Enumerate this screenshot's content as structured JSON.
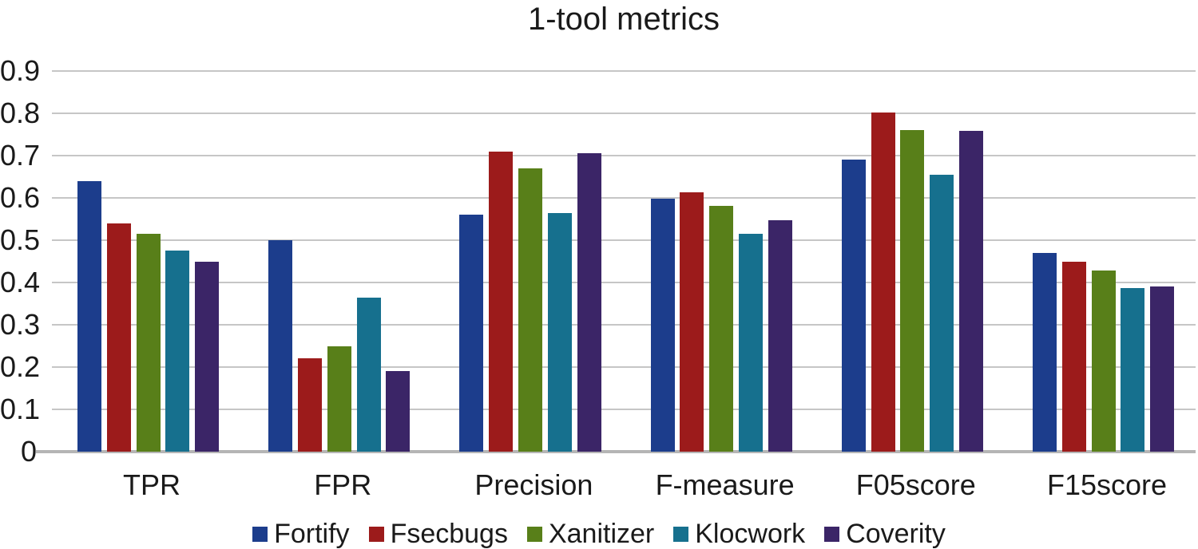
{
  "chart_data": {
    "type": "bar",
    "title": "1-tool metrics",
    "categories": [
      "TPR",
      "FPR",
      "Precision",
      "F-measure",
      "F05score",
      "F15score"
    ],
    "series": [
      {
        "name": "Fortify",
        "color": "#1c3d8c",
        "values": [
          0.64,
          0.5,
          0.56,
          0.598,
          0.69,
          0.47
        ]
      },
      {
        "name": "Fsecbugs",
        "color": "#9c1b1b",
        "values": [
          0.54,
          0.22,
          0.71,
          0.613,
          0.802,
          0.45
        ]
      },
      {
        "name": "Xanitizer",
        "color": "#587f19",
        "values": [
          0.515,
          0.25,
          0.67,
          0.582,
          0.76,
          0.428
        ]
      },
      {
        "name": "Klocwork",
        "color": "#16708e",
        "values": [
          0.475,
          0.365,
          0.565,
          0.516,
          0.654,
          0.387
        ]
      },
      {
        "name": "Coverity",
        "color": "#3b2567",
        "values": [
          0.45,
          0.19,
          0.705,
          0.547,
          0.758,
          0.39
        ]
      }
    ],
    "ylim": [
      0,
      0.9
    ],
    "ytick_step": 0.1,
    "ytick_labels": [
      "0",
      "0.1",
      "0.2",
      "0.3",
      "0.4",
      "0.5",
      "0.6",
      "0.7",
      "0.8",
      "0.9"
    ],
    "xlabel": "",
    "ylabel": "",
    "grid": true,
    "legend_position": "bottom",
    "colors": {
      "background": "#ffffff",
      "gridline": "#c6c6c6",
      "axisline": "#b5b5b5",
      "text": "#1a1a1a"
    }
  }
}
